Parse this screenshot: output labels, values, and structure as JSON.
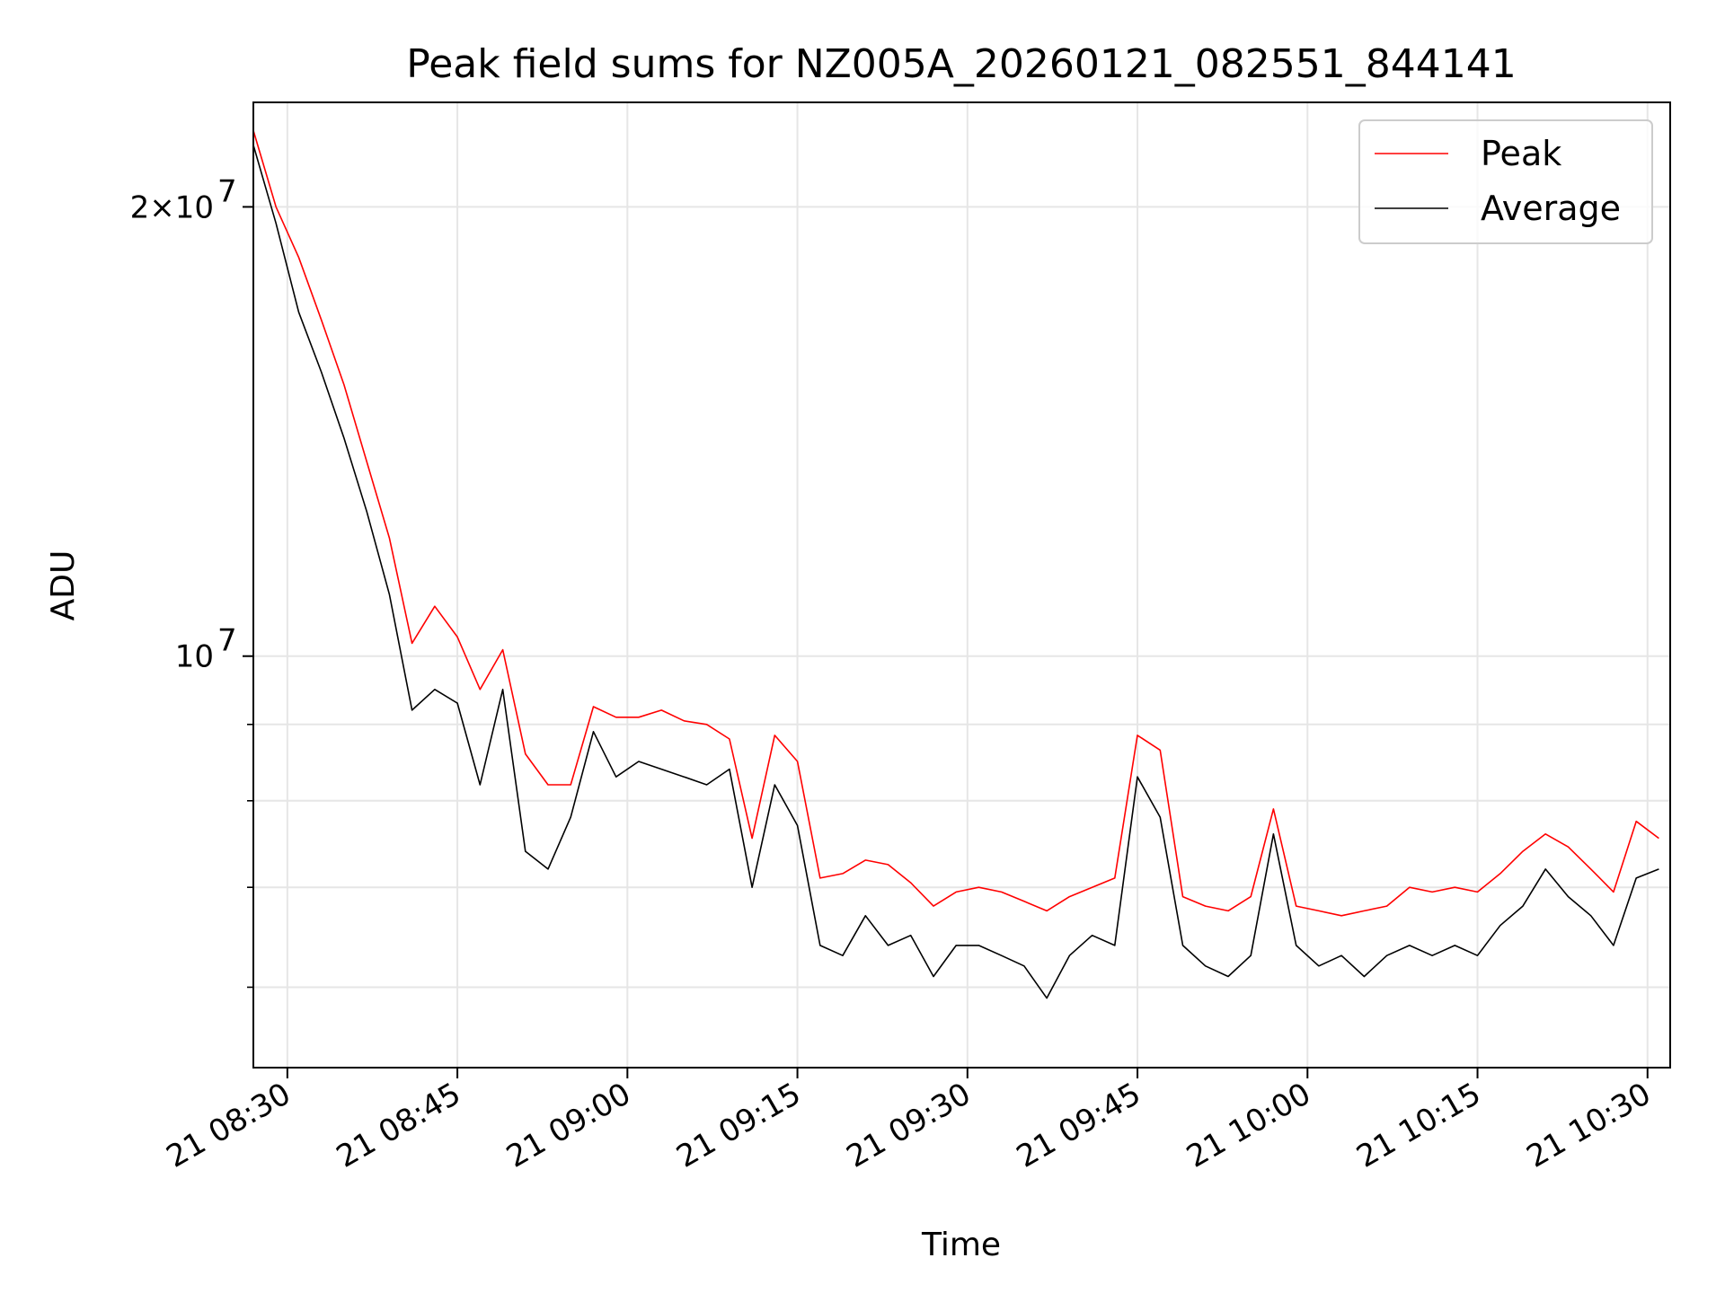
{
  "chart_data": {
    "type": "line",
    "title": "Peak field sums for NZ005A_20260121_082551_844141",
    "xlabel": "Time",
    "ylabel": "ADU",
    "yscale": "log",
    "xlim": [
      "2026-01-21 08:27",
      "2026-01-21 10:32"
    ],
    "ylim": [
      5300000,
      23500000
    ],
    "grid": true,
    "legend": "top-right",
    "x_ticks": [
      "2026-01-21 08:30",
      "2026-01-21 08:45",
      "2026-01-21 09:00",
      "2026-01-21 09:15",
      "2026-01-21 09:30",
      "2026-01-21 09:45",
      "2026-01-21 10:00",
      "2026-01-21 10:15",
      "2026-01-21 10:30"
    ],
    "x_tick_labels": [
      "21 08:30",
      "21 08:45",
      "21 09:00",
      "21 09:15",
      "21 09:30",
      "21 09:45",
      "21 10:00",
      "21 10:15",
      "21 10:30"
    ],
    "y_major_ticks": [
      {
        "value": 10000000,
        "base": "10",
        "exp": "7"
      },
      {
        "value": 20000000,
        "base": "2×10",
        "exp": "7"
      }
    ],
    "y_minor_ticks": [
      6000000,
      7000000,
      8000000,
      9000000
    ],
    "x": [
      "2026-01-21 08:27",
      "2026-01-21 08:29",
      "2026-01-21 08:31",
      "2026-01-21 08:33",
      "2026-01-21 08:35",
      "2026-01-21 08:37",
      "2026-01-21 08:39",
      "2026-01-21 08:41",
      "2026-01-21 08:43",
      "2026-01-21 08:45",
      "2026-01-21 08:47",
      "2026-01-21 08:49",
      "2026-01-21 08:51",
      "2026-01-21 08:53",
      "2026-01-21 08:55",
      "2026-01-21 08:57",
      "2026-01-21 08:59",
      "2026-01-21 09:01",
      "2026-01-21 09:03",
      "2026-01-21 09:05",
      "2026-01-21 09:07",
      "2026-01-21 09:09",
      "2026-01-21 09:11",
      "2026-01-21 09:13",
      "2026-01-21 09:15",
      "2026-01-21 09:17",
      "2026-01-21 09:19",
      "2026-01-21 09:21",
      "2026-01-21 09:23",
      "2026-01-21 09:25",
      "2026-01-21 09:27",
      "2026-01-21 09:29",
      "2026-01-21 09:31",
      "2026-01-21 09:33",
      "2026-01-21 09:35",
      "2026-01-21 09:37",
      "2026-01-21 09:39",
      "2026-01-21 09:41",
      "2026-01-21 09:43",
      "2026-01-21 09:45",
      "2026-01-21 09:47",
      "2026-01-21 09:49",
      "2026-01-21 09:51",
      "2026-01-21 09:53",
      "2026-01-21 09:55",
      "2026-01-21 09:57",
      "2026-01-21 09:59",
      "2026-01-21 10:01",
      "2026-01-21 10:03",
      "2026-01-21 10:05",
      "2026-01-21 10:07",
      "2026-01-21 10:09",
      "2026-01-21 10:11",
      "2026-01-21 10:13",
      "2026-01-21 10:15",
      "2026-01-21 10:17",
      "2026-01-21 10:19",
      "2026-01-21 10:21",
      "2026-01-21 10:23",
      "2026-01-21 10:25",
      "2026-01-21 10:27",
      "2026-01-21 10:29",
      "2026-01-21 10:31"
    ],
    "series": [
      {
        "name": "Peak",
        "color": "#ff0000",
        "values": [
          22500000,
          20000000,
          18500000,
          16800000,
          15200000,
          13500000,
          12000000,
          10200000,
          10800000,
          10300000,
          9500000,
          10100000,
          8600000,
          8200000,
          8200000,
          9250000,
          9100000,
          9100000,
          9200000,
          9050000,
          9000000,
          8800000,
          7550000,
          8850000,
          8500000,
          7100000,
          7150000,
          7300000,
          7250000,
          7050000,
          6800000,
          6950000,
          7000000,
          6950000,
          6850000,
          6750000,
          6900000,
          7000000,
          7100000,
          8850000,
          8650000,
          6900000,
          6800000,
          6750000,
          6900000,
          7900000,
          6800000,
          6750000,
          6700000,
          6750000,
          6800000,
          7000000,
          6950000,
          7000000,
          6950000,
          7150000,
          7400000,
          7600000,
          7450000,
          7200000,
          6950000,
          7750000,
          7550000
        ]
      },
      {
        "name": "Average",
        "color": "#000000",
        "values": [
          22000000,
          19500000,
          17000000,
          15500000,
          14000000,
          12500000,
          11000000,
          9200000,
          9500000,
          9300000,
          8200000,
          9500000,
          7400000,
          7200000,
          7800000,
          8900000,
          8300000,
          8500000,
          8400000,
          8300000,
          8200000,
          8400000,
          7000000,
          8200000,
          7700000,
          6400000,
          6300000,
          6700000,
          6400000,
          6500000,
          6100000,
          6400000,
          6400000,
          6300000,
          6200000,
          5900000,
          6300000,
          6500000,
          6400000,
          8300000,
          7800000,
          6400000,
          6200000,
          6100000,
          6300000,
          7600000,
          6400000,
          6200000,
          6300000,
          6100000,
          6300000,
          6400000,
          6300000,
          6400000,
          6300000,
          6600000,
          6800000,
          7200000,
          6900000,
          6700000,
          6400000,
          7100000,
          7200000
        ]
      }
    ]
  }
}
